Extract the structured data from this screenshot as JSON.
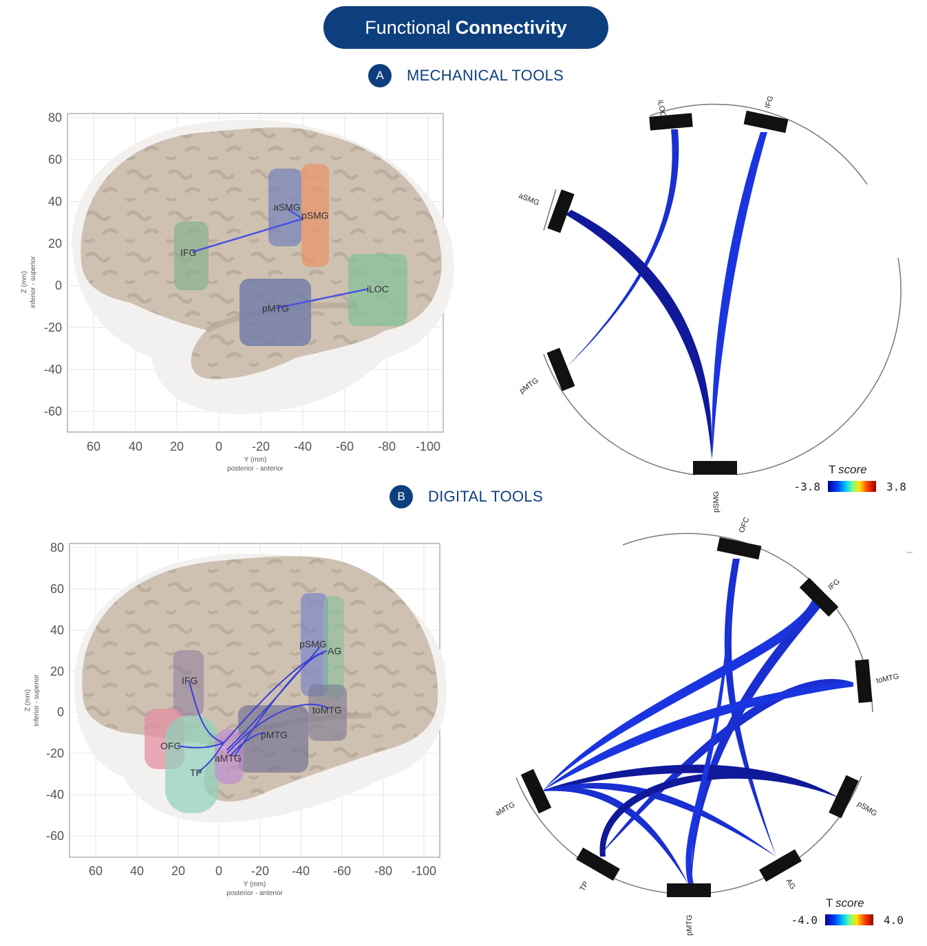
{
  "header": {
    "title_light": "Functional",
    "title_bold": "Connectivity"
  },
  "sections": [
    {
      "badge": "A",
      "label": "MECHANICAL TOOLS"
    },
    {
      "badge": "B",
      "label": "DIGITAL TOOLS"
    }
  ],
  "axes": {
    "z_ticks": [
      "80",
      "60",
      "40",
      "20",
      "0",
      "-20",
      "-40",
      "-60"
    ],
    "y_ticks": [
      "60",
      "40",
      "20",
      "0",
      "-20",
      "-40",
      "-60",
      "-80",
      "-100"
    ],
    "z_label": "Z (mm)",
    "z_sublabel": "inferior - superior",
    "y_label": "Y (mm)",
    "y_sublabel": "posterior - anterior"
  },
  "panel_a": {
    "brain_labels": [
      "aSMG",
      "pSMG",
      "IFG",
      "iLOC",
      "pMTG"
    ],
    "nodes": [
      "iLOC",
      "IFG",
      "aSMG",
      "pMTG",
      "pSMG"
    ],
    "colorbar": {
      "title_plain": "T",
      "title_italic": "score",
      "min": "-3.8",
      "max": "3.8"
    }
  },
  "panel_b": {
    "brain_labels": [
      "pSMG",
      "AG",
      "IFG",
      "toMTG",
      "pMTG",
      "OFC",
      "aMTG",
      "TP"
    ],
    "nodes": [
      "OFC",
      "IFG",
      "toMTG",
      "pSMG",
      "AG",
      "pMTG",
      "TP",
      "aMTG"
    ],
    "colorbar": {
      "title_plain": "T",
      "title_italic": "score",
      "min": "-4.0",
      "max": "4.0"
    }
  },
  "colors": {
    "brand": "#0d3f7e",
    "edge": "#1a2fd0",
    "edge_dark": "#10199a",
    "brain": "#cfc1b2"
  }
}
